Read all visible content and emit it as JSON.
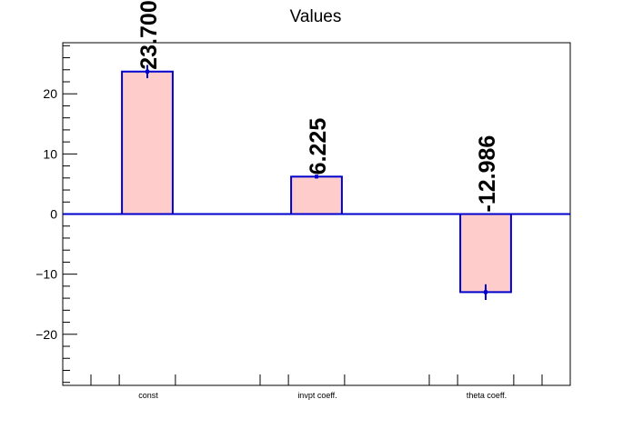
{
  "chart_data": {
    "type": "bar",
    "title": "Values",
    "xlabel": "",
    "ylabel": "",
    "categories": [
      "const",
      "invpt coeff.",
      "theta coeff."
    ],
    "values": [
      23.7,
      6.225,
      -12.986
    ],
    "value_labels": [
      "23.700",
      "6.225",
      "-12.986"
    ],
    "errors": [
      1.1,
      0.3,
      1.3
    ],
    "ylim": [
      -28.5,
      28.5
    ],
    "yticks": [
      -20,
      -10,
      0,
      10,
      20
    ],
    "ytick_labels": [
      "−20",
      "−10",
      "0",
      "10",
      "20"
    ],
    "grid": false,
    "colors": {
      "bar_fill": "#ffcccc",
      "bar_edge": "#0000cc",
      "axis": "#000000"
    }
  }
}
